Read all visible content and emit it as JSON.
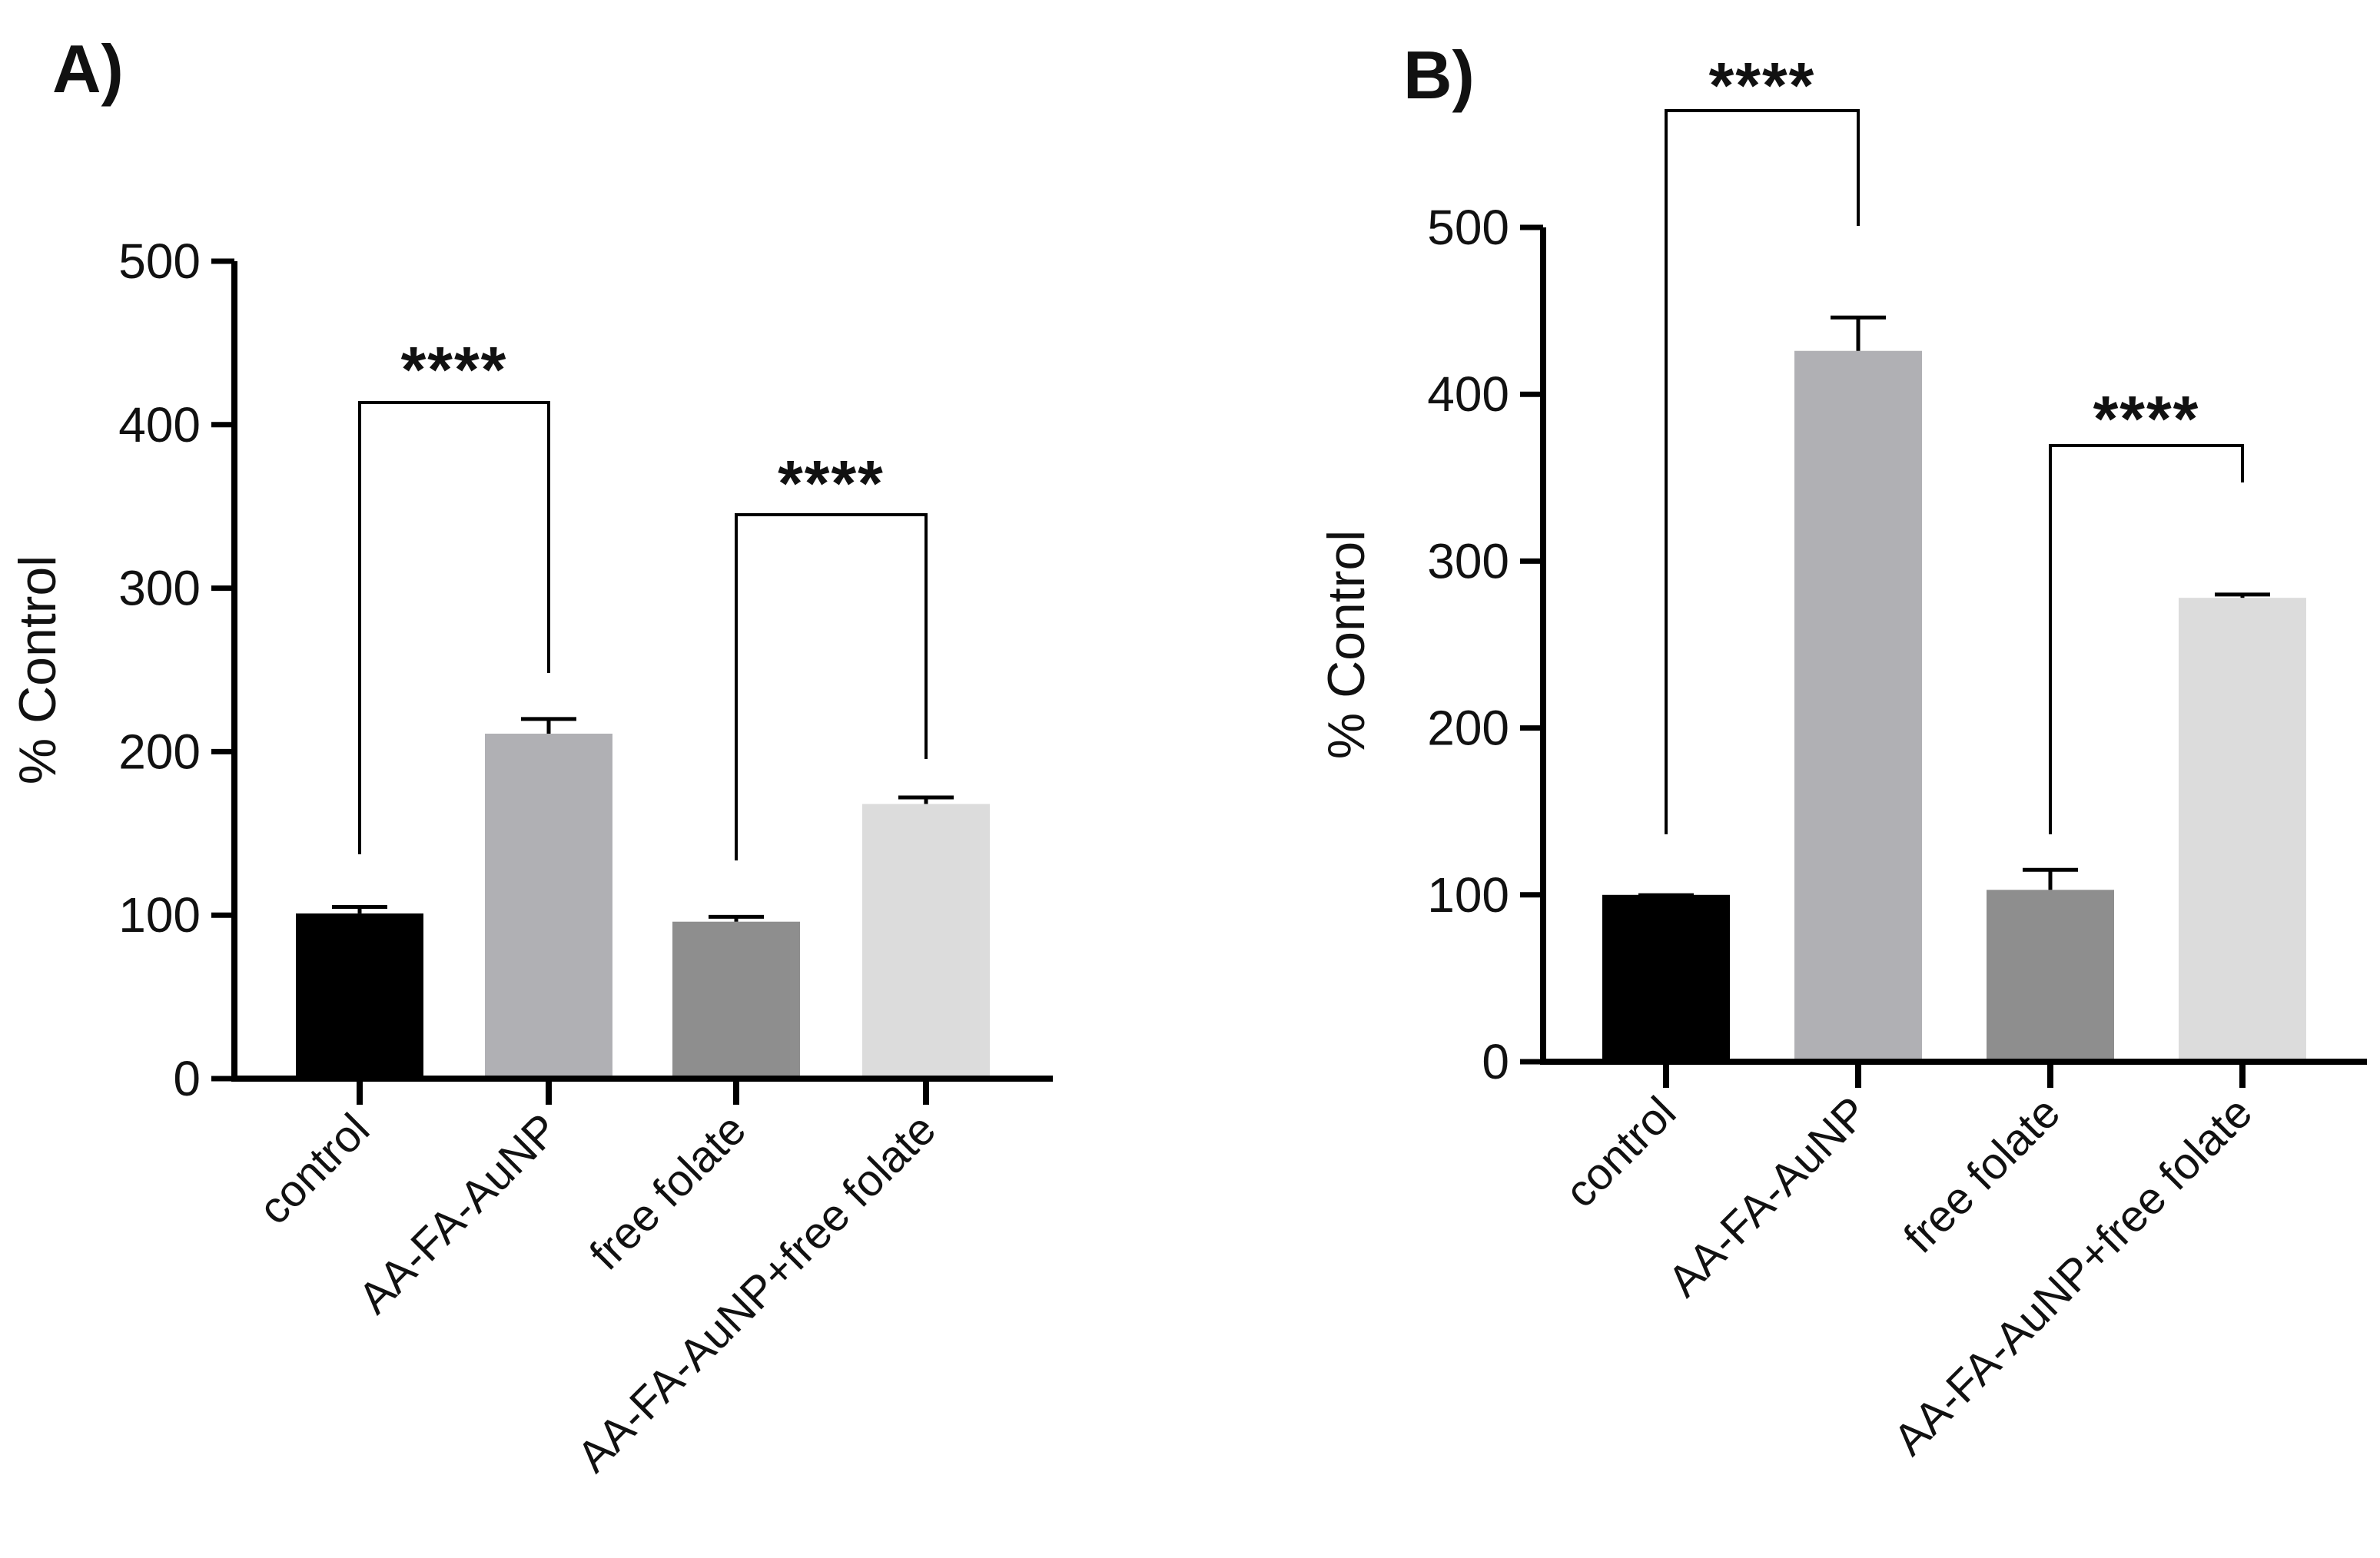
{
  "chart_data": [
    {
      "type": "bar",
      "panel_label": "A)",
      "title": "",
      "xlabel": "",
      "ylabel": "% Control",
      "ylim": [
        0,
        500
      ],
      "yticks": [
        0,
        100,
        200,
        300,
        400,
        500
      ],
      "categories": [
        "control",
        "AA-FA-AuNP",
        "free folate",
        "AA-FA-AuNP+free folate"
      ],
      "values": [
        101,
        211,
        96,
        168
      ],
      "errors": [
        4,
        9,
        3,
        4
      ],
      "colors": [
        "#000000",
        "#b0b0b4",
        "#8e8e8e",
        "#dcdcdc"
      ],
      "significance": [
        {
          "from": 0,
          "to": 1,
          "label": "****"
        },
        {
          "from": 2,
          "to": 3,
          "label": "****"
        }
      ]
    },
    {
      "type": "bar",
      "panel_label": "B)",
      "title": "",
      "xlabel": "",
      "ylabel": "% Control",
      "ylim": [
        0,
        500
      ],
      "yticks": [
        0,
        100,
        200,
        300,
        400,
        500
      ],
      "categories": [
        "control",
        "AA-FA-AuNP",
        "free folate",
        "AA-FA-AuNP+free folate"
      ],
      "values": [
        100,
        426,
        103,
        278
      ],
      "errors": [
        0,
        20,
        12,
        2
      ],
      "colors": [
        "#000000",
        "#b0b0b4",
        "#8e8e8e",
        "#dcdcdc"
      ],
      "significance": [
        {
          "from": 0,
          "to": 1,
          "label": "****"
        },
        {
          "from": 2,
          "to": 3,
          "label": "****"
        }
      ]
    }
  ]
}
